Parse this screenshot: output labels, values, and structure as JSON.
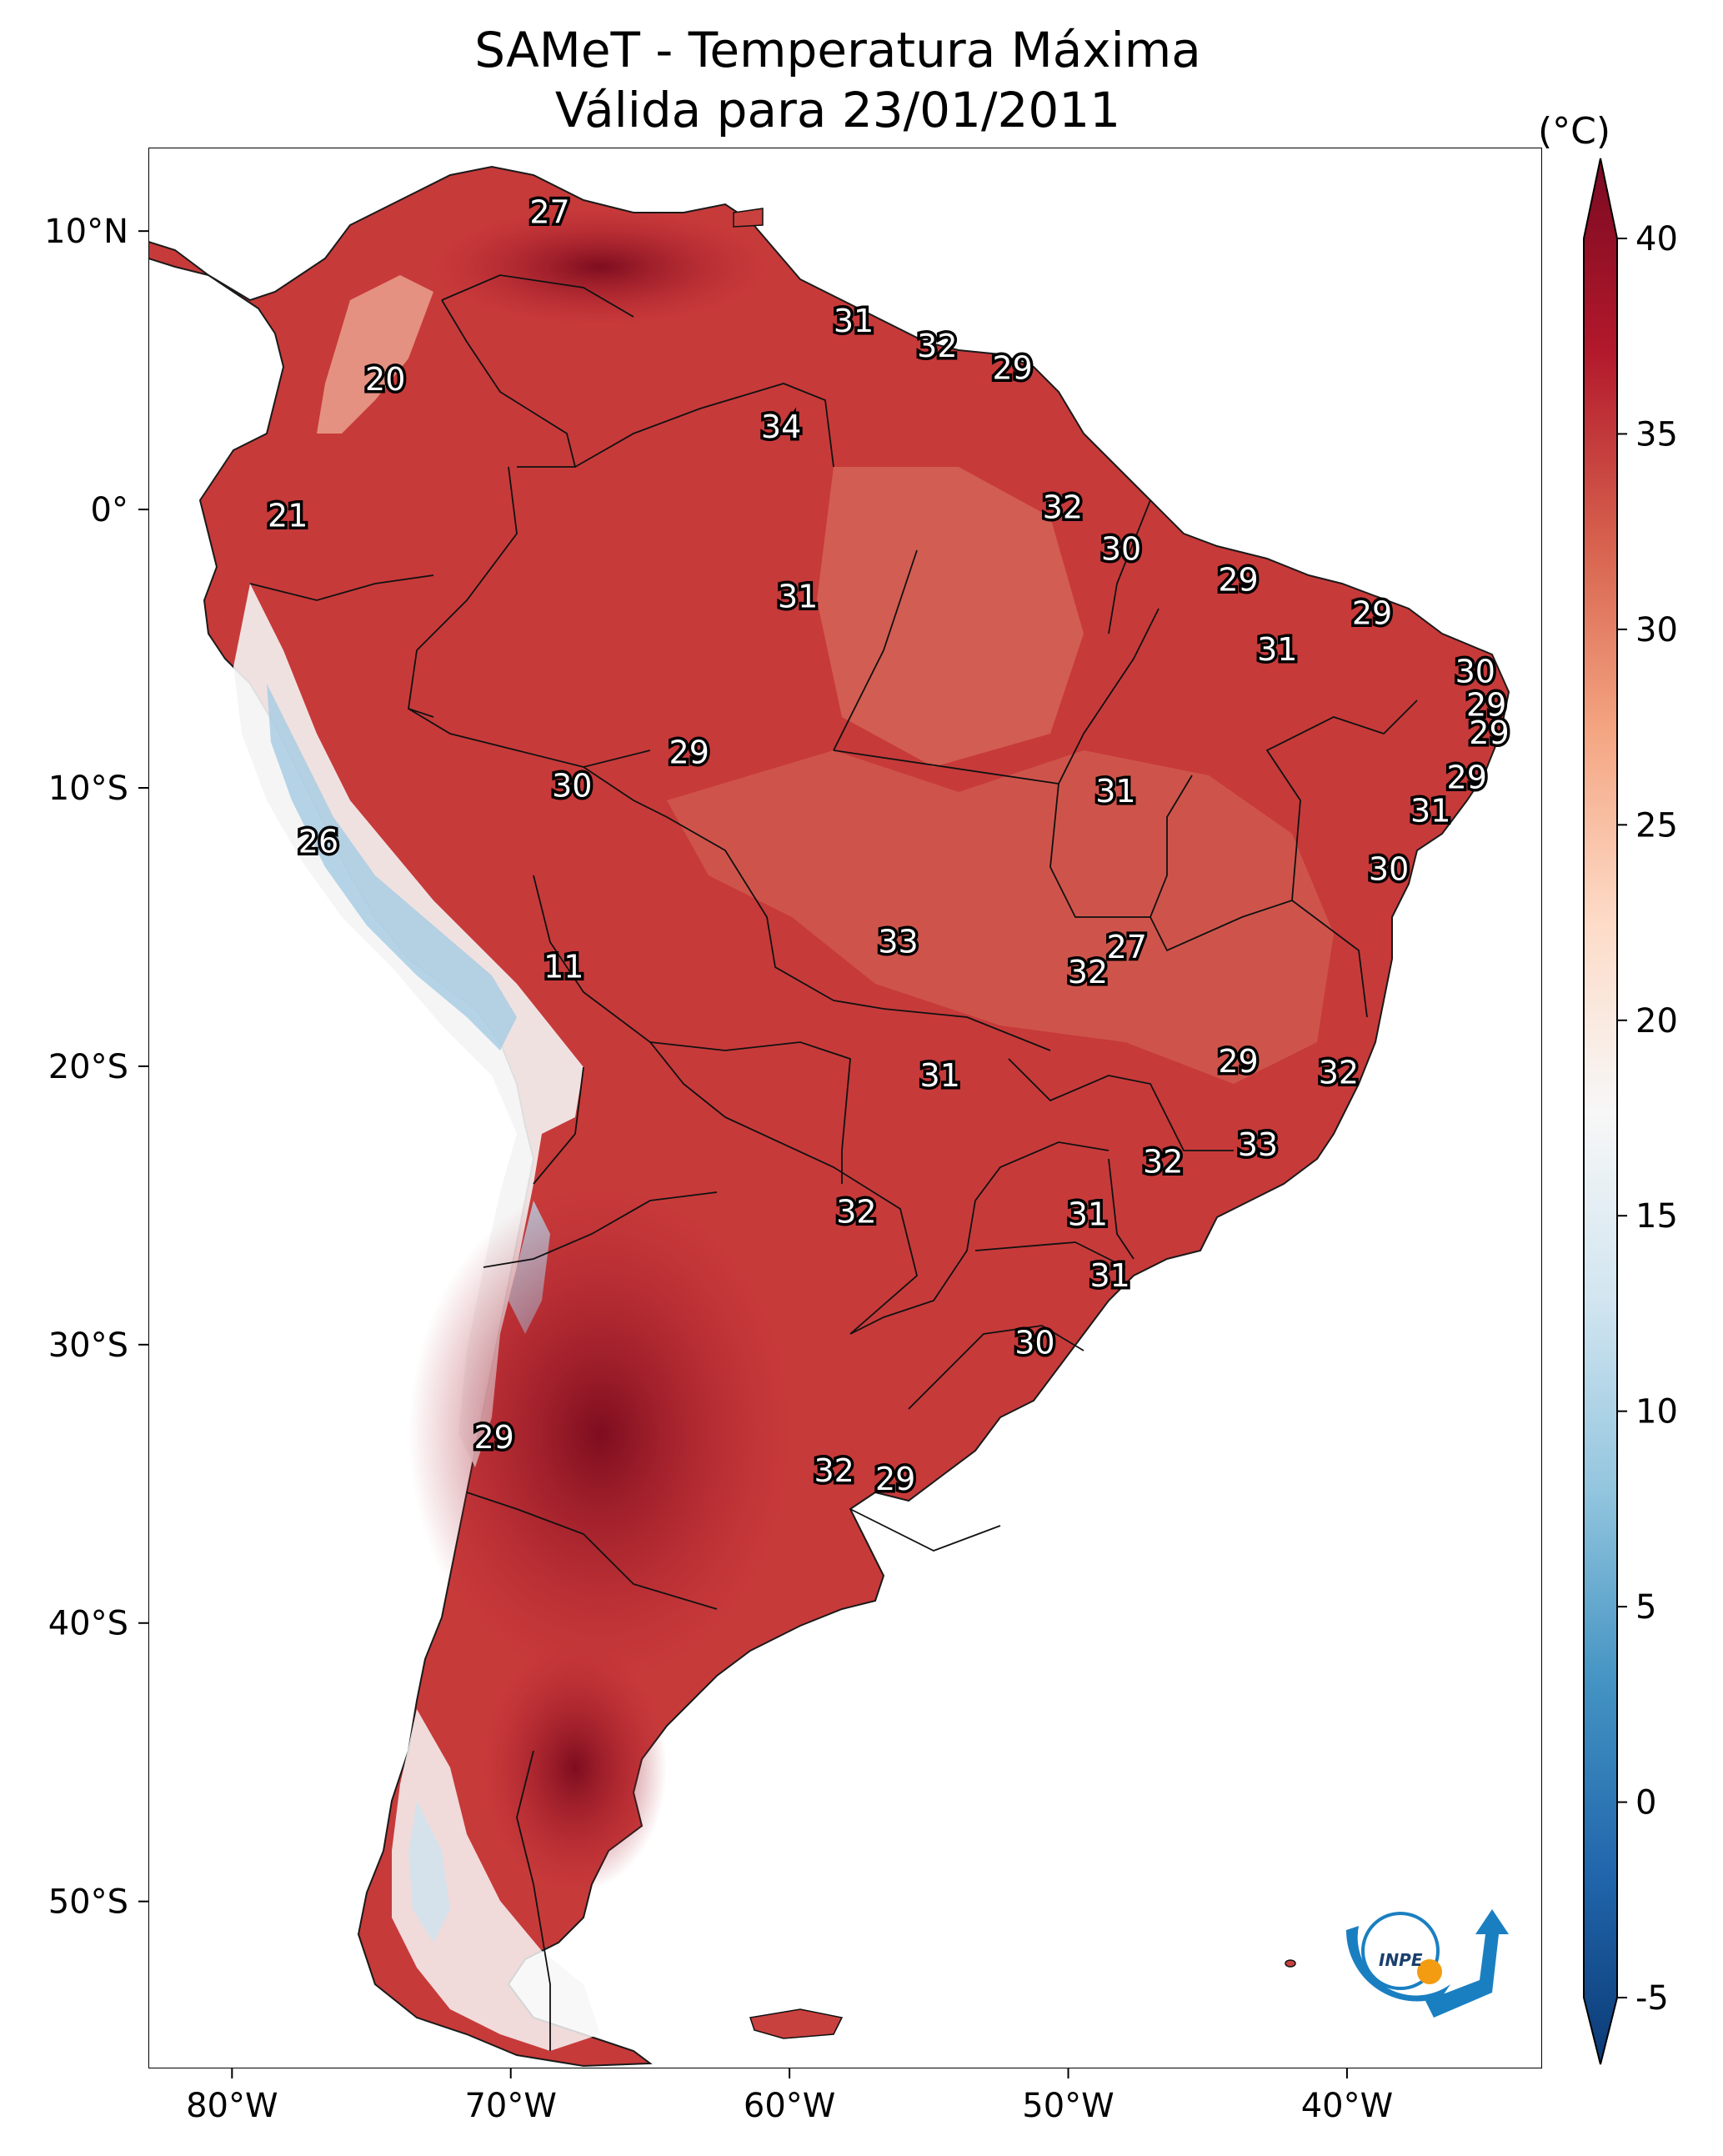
{
  "title": {
    "line1": "SAMeT - Temperatura Máxima",
    "line2": "Válida para 23/01/2011"
  },
  "map": {
    "type": "filled temperature map",
    "lon_range": [
      -83,
      -33
    ],
    "lat_range": [
      -56,
      13
    ],
    "x_ticks": [
      {
        "lon": -80,
        "label": "80°W"
      },
      {
        "lon": -70,
        "label": "70°W"
      },
      {
        "lon": -60,
        "label": "60°W"
      },
      {
        "lon": -50,
        "label": "50°W"
      },
      {
        "lon": -40,
        "label": "40°W"
      }
    ],
    "y_ticks": [
      {
        "lat": 10,
        "label": "10°N"
      },
      {
        "lat": 0,
        "label": "0°"
      },
      {
        "lat": -10,
        "label": "10°S"
      },
      {
        "lat": -20,
        "label": "20°S"
      },
      {
        "lat": -30,
        "label": "30°S"
      },
      {
        "lat": -40,
        "label": "40°S"
      },
      {
        "lat": -50,
        "label": "50°S"
      }
    ],
    "values": [
      {
        "lon": -68.6,
        "lat": 10.6,
        "label": "27"
      },
      {
        "lon": -57.7,
        "lat": 6.7,
        "label": "31"
      },
      {
        "lon": -54.7,
        "lat": 5.8,
        "label": "32"
      },
      {
        "lon": -52.0,
        "lat": 5.0,
        "label": "29"
      },
      {
        "lon": -74.5,
        "lat": 4.6,
        "label": "20"
      },
      {
        "lon": -60.3,
        "lat": 2.9,
        "label": "34"
      },
      {
        "lon": -78.0,
        "lat": -0.3,
        "label": "21"
      },
      {
        "lon": -50.2,
        "lat": 0.0,
        "label": "32"
      },
      {
        "lon": -48.1,
        "lat": -1.5,
        "label": "30"
      },
      {
        "lon": -43.9,
        "lat": -2.6,
        "label": "29"
      },
      {
        "lon": -59.7,
        "lat": -3.2,
        "label": "31"
      },
      {
        "lon": -39.1,
        "lat": -3.8,
        "label": "29"
      },
      {
        "lon": -42.5,
        "lat": -5.1,
        "label": "31"
      },
      {
        "lon": -35.4,
        "lat": -5.9,
        "label": "30"
      },
      {
        "lon": -35.0,
        "lat": -7.1,
        "label": "29"
      },
      {
        "lon": -34.9,
        "lat": -8.1,
        "label": "29"
      },
      {
        "lon": -63.6,
        "lat": -8.8,
        "label": "29"
      },
      {
        "lon": -35.7,
        "lat": -9.7,
        "label": "29"
      },
      {
        "lon": -67.8,
        "lat": -10.0,
        "label": "30"
      },
      {
        "lon": -48.3,
        "lat": -10.2,
        "label": "31"
      },
      {
        "lon": -37.0,
        "lat": -10.9,
        "label": "31"
      },
      {
        "lon": -76.9,
        "lat": -12.0,
        "label": "26"
      },
      {
        "lon": -38.5,
        "lat": -13.0,
        "label": "30"
      },
      {
        "lon": -56.1,
        "lat": -15.6,
        "label": "33"
      },
      {
        "lon": -47.9,
        "lat": -15.8,
        "label": "27"
      },
      {
        "lon": -49.3,
        "lat": -16.7,
        "label": "32"
      },
      {
        "lon": -68.1,
        "lat": -16.5,
        "label": "11"
      },
      {
        "lon": -43.9,
        "lat": -19.9,
        "label": "29"
      },
      {
        "lon": -54.6,
        "lat": -20.4,
        "label": "31"
      },
      {
        "lon": -40.3,
        "lat": -20.3,
        "label": "32"
      },
      {
        "lon": -43.2,
        "lat": -22.9,
        "label": "33"
      },
      {
        "lon": -46.6,
        "lat": -23.5,
        "label": "32"
      },
      {
        "lon": -57.6,
        "lat": -25.3,
        "label": "32"
      },
      {
        "lon": -49.3,
        "lat": -25.4,
        "label": "31"
      },
      {
        "lon": -48.5,
        "lat": -27.6,
        "label": "31"
      },
      {
        "lon": -51.2,
        "lat": -30.0,
        "label": "30"
      },
      {
        "lon": -70.6,
        "lat": -33.4,
        "label": "29"
      },
      {
        "lon": -58.4,
        "lat": -34.6,
        "label": "32"
      },
      {
        "lon": -56.2,
        "lat": -34.9,
        "label": "29"
      }
    ]
  },
  "colorbar": {
    "unit_label": "(°C)",
    "min": -5,
    "max": 40,
    "ticks": [
      "-5",
      "0",
      "5",
      "10",
      "15",
      "20",
      "25",
      "30",
      "35",
      "40"
    ],
    "colors": [
      "#08306b",
      "#2166ac",
      "#4393c3",
      "#92c5de",
      "#d1e5f0",
      "#f7f7f7",
      "#fddbc7",
      "#f4a582",
      "#d6604d",
      "#b2182b",
      "#67001f"
    ]
  },
  "logo": {
    "text": "INPE",
    "colors": [
      "#1a7fc1",
      "#f39c12"
    ]
  }
}
